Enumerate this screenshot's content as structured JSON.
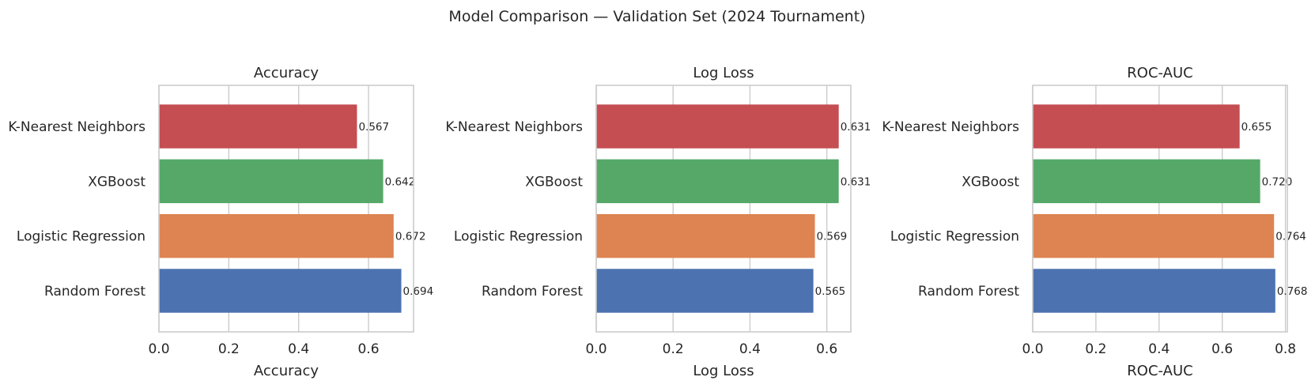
{
  "suptitle": "Model Comparison — Validation Set (2024 Tournament)",
  "colors": {
    "Random Forest": "#4c72b0",
    "Logistic Regression": "#dd8452",
    "XGBoost": "#55a868",
    "K-Nearest Neighbors": "#c44e52"
  },
  "chart_data": [
    {
      "type": "bar",
      "orientation": "horizontal",
      "title": "Accuracy",
      "xlabel": "Accuracy",
      "ylabel": "",
      "xlim": [
        0,
        0.729
      ],
      "xticks": [
        "0.0",
        "0.2",
        "0.4",
        "0.6"
      ],
      "grid": true,
      "categories": [
        "Random Forest",
        "Logistic Regression",
        "XGBoost",
        "K-Nearest Neighbors"
      ],
      "values": [
        0.694,
        0.672,
        0.642,
        0.567
      ],
      "value_labels": [
        "0.694",
        "0.672",
        "0.642",
        "0.567"
      ]
    },
    {
      "type": "bar",
      "orientation": "horizontal",
      "title": "Log Loss",
      "xlabel": "Log Loss",
      "ylabel": "",
      "xlim": [
        0,
        0.6625
      ],
      "xticks": [
        "0.0",
        "0.2",
        "0.4",
        "0.6"
      ],
      "grid": true,
      "categories": [
        "Random Forest",
        "Logistic Regression",
        "XGBoost",
        "K-Nearest Neighbors"
      ],
      "values": [
        0.565,
        0.569,
        0.631,
        0.631
      ],
      "value_labels": [
        "0.565",
        "0.569",
        "0.631",
        "0.631"
      ]
    },
    {
      "type": "bar",
      "orientation": "horizontal",
      "title": "ROC-AUC",
      "xlabel": "ROC-AUC",
      "ylabel": "",
      "xlim": [
        0,
        0.806
      ],
      "xticks": [
        "0.0",
        "0.2",
        "0.4",
        "0.6",
        "0.8"
      ],
      "grid": true,
      "categories": [
        "Random Forest",
        "Logistic Regression",
        "XGBoost",
        "K-Nearest Neighbors"
      ],
      "values": [
        0.768,
        0.764,
        0.72,
        0.655
      ],
      "value_labels": [
        "0.768",
        "0.764",
        "0.720",
        "0.655"
      ]
    }
  ]
}
